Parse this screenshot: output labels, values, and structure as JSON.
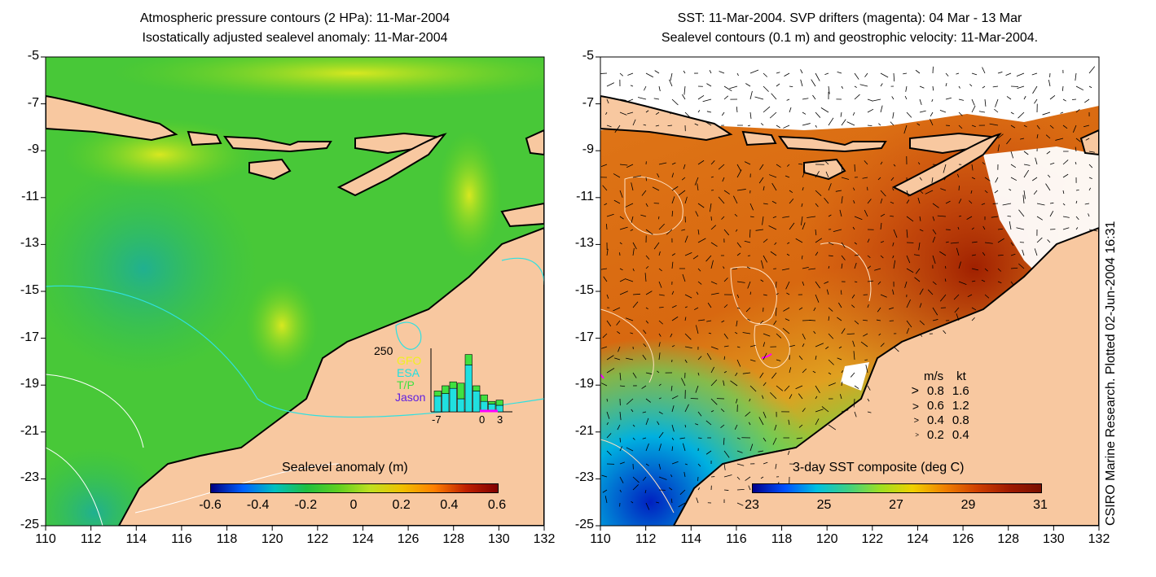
{
  "left_panel": {
    "title_line1": "Atmospheric pressure contours (2 HPa): 11-Mar-2004",
    "title_line2": "Isostatically adjusted sealevel anomaly: 11-Mar-2004",
    "colorbar": {
      "title": "Sealevel anomaly (m)",
      "tick_labels": [
        "-0.6",
        "-0.4",
        "-0.2",
        "0",
        "0.2",
        "0.4",
        "0.6"
      ]
    },
    "satellite_inset": {
      "y_tick": "250",
      "x_ticks": [
        "-7",
        "0",
        "3"
      ],
      "legend": [
        {
          "label": "GFO",
          "color": "#f0f020"
        },
        {
          "label": "ESA",
          "color": "#20e0e0"
        },
        {
          "label": "T/P",
          "color": "#40e040"
        },
        {
          "label": "Jason",
          "color": "#6020e0"
        }
      ],
      "bars": [
        {
          "day": -6,
          "values": [
            0,
            60,
            20,
            0
          ]
        },
        {
          "day": -5,
          "values": [
            0,
            70,
            30,
            0
          ]
        },
        {
          "day": -4,
          "values": [
            0,
            90,
            25,
            0
          ]
        },
        {
          "day": -3,
          "values": [
            0,
            50,
            60,
            0
          ]
        },
        {
          "day": -2,
          "values": [
            0,
            180,
            40,
            0
          ]
        },
        {
          "day": -1,
          "values": [
            0,
            80,
            20,
            0
          ]
        },
        {
          "day": 0,
          "values": [
            0,
            40,
            25,
            0
          ]
        },
        {
          "day": 1,
          "values": [
            0,
            30,
            10,
            0
          ]
        },
        {
          "day": 2,
          "values": [
            0,
            25,
            20,
            0
          ]
        }
      ]
    }
  },
  "right_panel": {
    "title_line1": "SST: 11-Mar-2004. SVP drifters (magenta): 04 Mar - 13 Mar",
    "title_line2": "Sealevel contours (0.1 m) and geostrophic velocity: 11-Mar-2004.",
    "colorbar": {
      "title": "3-day SST composite (deg C)",
      "tick_labels": [
        "23",
        "25",
        "27",
        "29",
        "31"
      ]
    },
    "velocity_legend": {
      "header_ms": "m/s",
      "header_kt": "kt",
      "rows": [
        {
          "ms": "0.8",
          "kt": "1.6"
        },
        {
          "ms": "0.6",
          "kt": "1.2"
        },
        {
          "ms": "0.4",
          "kt": "0.8"
        },
        {
          "ms": "0.2",
          "kt": "0.4"
        }
      ]
    },
    "credit": "CSIRO Marine Research. Plotted 02-Jun-2004 16:31"
  },
  "axes": {
    "lat_labels": [
      "-5",
      "-7",
      "-9",
      "-11",
      "-13",
      "-15",
      "-17",
      "-19",
      "-21",
      "-23",
      "-25"
    ],
    "lon_labels": [
      "110",
      "112",
      "114",
      "116",
      "118",
      "120",
      "122",
      "124",
      "126",
      "128",
      "130",
      "132"
    ]
  },
  "colors": {
    "land": "#f8c8a0",
    "coast": "#000000",
    "sla_palette": [
      "#000080",
      "#0060ff",
      "#00c0c0",
      "#20c040",
      "#60d020",
      "#c0e020",
      "#f0c000",
      "#ff8000",
      "#c02000",
      "#800000"
    ],
    "sst_palette": [
      "#00008c",
      "#0050ff",
      "#00c0e0",
      "#40d080",
      "#a0e020",
      "#f0d000",
      "#f08000",
      "#d04000",
      "#a01a00",
      "#7a1000"
    ]
  }
}
